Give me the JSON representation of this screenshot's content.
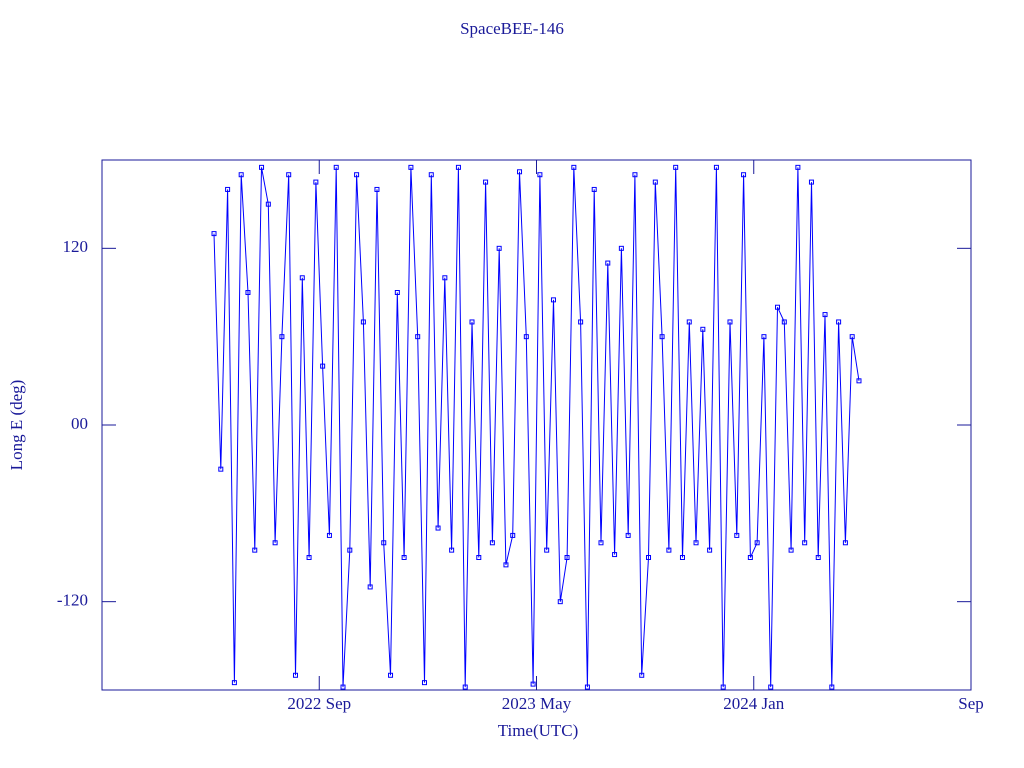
{
  "chart_data": {
    "type": "line",
    "title": "SpaceBEE-146",
    "x_label": "Time(UTC)",
    "y_label": "Long E (deg)",
    "x": [
      "2022-05",
      "2022-05",
      "2022-05",
      "2022-05",
      "2022-06",
      "2022-06",
      "2022-06",
      "2022-06",
      "2022-07",
      "2022-07",
      "2022-07",
      "2022-07",
      "2022-08",
      "2022-08",
      "2022-08",
      "2022-08",
      "2022-09",
      "2022-09",
      "2022-09",
      "2022-09",
      "2022-10",
      "2022-10",
      "2022-10",
      "2022-10",
      "2022-11",
      "2022-11",
      "2022-11",
      "2022-11",
      "2022-12",
      "2022-12",
      "2022-12",
      "2022-12",
      "2023-01",
      "2023-01",
      "2023-01",
      "2023-01",
      "2023-02",
      "2023-02",
      "2023-02",
      "2023-02",
      "2023-03",
      "2023-03",
      "2023-03",
      "2023-03",
      "2023-04",
      "2023-04",
      "2023-04",
      "2023-04",
      "2023-05",
      "2023-05",
      "2023-05",
      "2023-05",
      "2023-06",
      "2023-06",
      "2023-06",
      "2023-06",
      "2023-07",
      "2023-07",
      "2023-07",
      "2023-07",
      "2023-08",
      "2023-08",
      "2023-08",
      "2023-08",
      "2023-09",
      "2023-09",
      "2023-09",
      "2023-09",
      "2023-10",
      "2023-10",
      "2023-10",
      "2023-10",
      "2023-11",
      "2023-11",
      "2023-11",
      "2023-11",
      "2023-12",
      "2023-12",
      "2023-12",
      "2023-12",
      "2024-01",
      "2024-01",
      "2024-01",
      "2024-01",
      "2024-02",
      "2024-02",
      "2024-02",
      "2024-02",
      "2024-03",
      "2024-03",
      "2024-03",
      "2024-03",
      "2024-04",
      "2024-04",
      "2024-04",
      "2024-04"
    ],
    "series": [
      {
        "color": "#0000ff",
        "values": [
          130,
          -30,
          160,
          -175,
          170,
          90,
          -85,
          175,
          150,
          -80,
          60,
          170,
          -170,
          100,
          -90,
          165,
          40,
          -75,
          175,
          -178,
          -85,
          170,
          70,
          -110,
          160,
          -80,
          -170,
          90,
          -90,
          175,
          60,
          -175,
          170,
          -70,
          100,
          -85,
          175,
          -178,
          70,
          -90,
          165,
          -80,
          120,
          -95,
          -75,
          172,
          60,
          -176,
          170,
          -85,
          85,
          -120,
          -90,
          175,
          70,
          -178,
          160,
          -80,
          110,
          -88,
          120,
          -75,
          170,
          -170,
          -90,
          165,
          60,
          -85,
          175,
          -90,
          70,
          -80,
          65,
          -85,
          175,
          -178,
          70,
          -75,
          170,
          -90,
          -80,
          60,
          -178,
          80,
          70,
          -85,
          175,
          -80,
          165,
          -90,
          75,
          -178,
          70,
          -80,
          60,
          30
        ]
      }
    ],
    "xlim": [
      "2022-01",
      "2024-09"
    ],
    "xticks": [
      {
        "value": "2022-09",
        "label": "2022 Sep"
      },
      {
        "value": "2023-05",
        "label": "2023 May"
      },
      {
        "value": "2024-01",
        "label": "2024 Jan"
      },
      {
        "value": "2024-09",
        "label": "Sep"
      }
    ],
    "ylim": [
      -180,
      180
    ],
    "yticks": [
      -120,
      {
        "value": 0,
        "label": "00"
      },
      120
    ]
  }
}
